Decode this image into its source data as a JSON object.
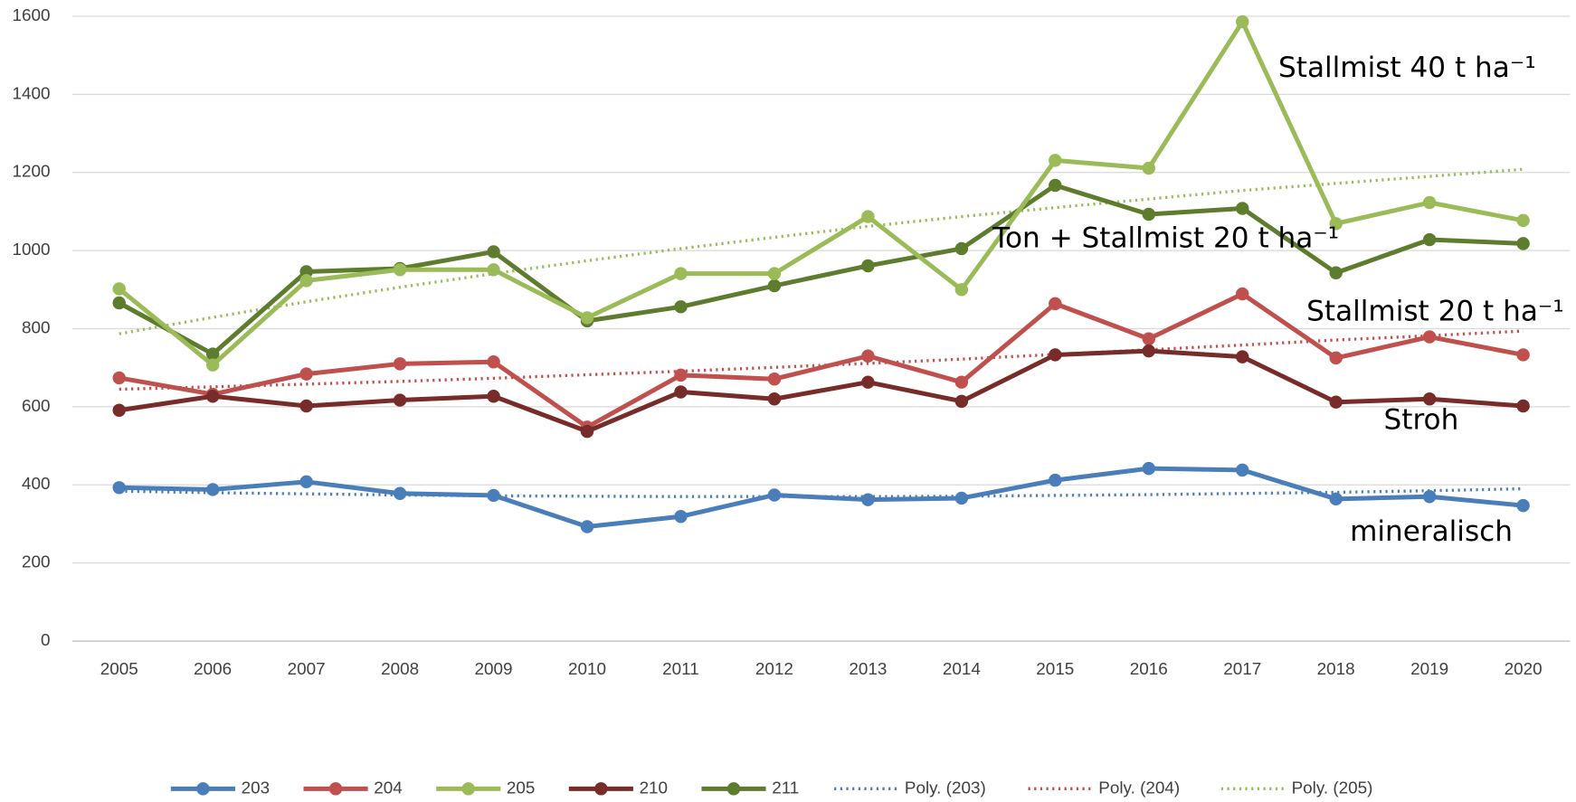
{
  "chart_data": {
    "type": "line",
    "x": [
      "2005",
      "2006",
      "2007",
      "2008",
      "2009",
      "2010",
      "2011",
      "2012",
      "2013",
      "2014",
      "2015",
      "2016",
      "2017",
      "2018",
      "2019",
      "2020"
    ],
    "ylim": [
      0,
      1600
    ],
    "yticks": [
      0,
      200,
      400,
      600,
      800,
      1000,
      1200,
      1400,
      1600
    ],
    "grid": true,
    "legend": "bottom",
    "series": [
      {
        "name": "203",
        "color": "#4a7ebb",
        "style": "solid",
        "markers": true,
        "values": [
          393,
          388,
          408,
          378,
          373,
          293,
          319,
          374,
          362,
          366,
          412,
          442,
          438,
          364,
          370,
          347
        ]
      },
      {
        "name": "204",
        "color": "#c0504d",
        "style": "solid",
        "markers": true,
        "values": [
          674,
          632,
          684,
          710,
          715,
          548,
          681,
          671,
          730,
          663,
          864,
          774,
          889,
          725,
          779,
          733
        ]
      },
      {
        "name": "205",
        "color": "#9bbb59",
        "style": "solid",
        "markers": true,
        "values": [
          902,
          707,
          923,
          951,
          951,
          828,
          941,
          941,
          1087,
          900,
          1231,
          1211,
          1586,
          1069,
          1123,
          1077
        ]
      },
      {
        "name": "210",
        "color": "#772c2a",
        "style": "solid",
        "markers": true,
        "values": [
          591,
          627,
          602,
          617,
          627,
          537,
          638,
          620,
          663,
          614,
          733,
          743,
          728,
          612,
          620,
          602
        ]
      },
      {
        "name": "211",
        "color": "#5e7c2e",
        "style": "solid",
        "markers": true,
        "values": [
          866,
          735,
          946,
          954,
          997,
          820,
          856,
          910,
          961,
          1005,
          1167,
          1093,
          1108,
          943,
          1028,
          1018
        ]
      },
      {
        "name": "Poly. (203)",
        "color": "#4a7ebb",
        "style": "dotted",
        "markers": false,
        "values": [
          384,
          380,
          377,
          374,
          372,
          371,
          370,
          370,
          370,
          371,
          373,
          375,
          378,
          381,
          385,
          390
        ]
      },
      {
        "name": "Poly. (204)",
        "color": "#c0504d",
        "style": "dotted",
        "markers": false,
        "values": [
          645,
          651,
          658,
          665,
          673,
          682,
          691,
          701,
          711,
          722,
          734,
          746,
          758,
          771,
          782,
          794
        ]
      },
      {
        "name": "Poly. (205)",
        "color": "#9bbb59",
        "style": "dotted",
        "markers": false,
        "values": [
          787,
          829,
          869,
          906,
          941,
          974,
          1005,
          1034,
          1062,
          1087,
          1110,
          1132,
          1154,
          1172,
          1190,
          1208
        ]
      }
    ],
    "annotations": [
      "Stallmist 40 t ha⁻¹",
      "Ton + Stallmist 20 t ha⁻¹",
      "Stallmist 20 t ha⁻¹",
      "Stroh",
      "mineralisch"
    ]
  }
}
